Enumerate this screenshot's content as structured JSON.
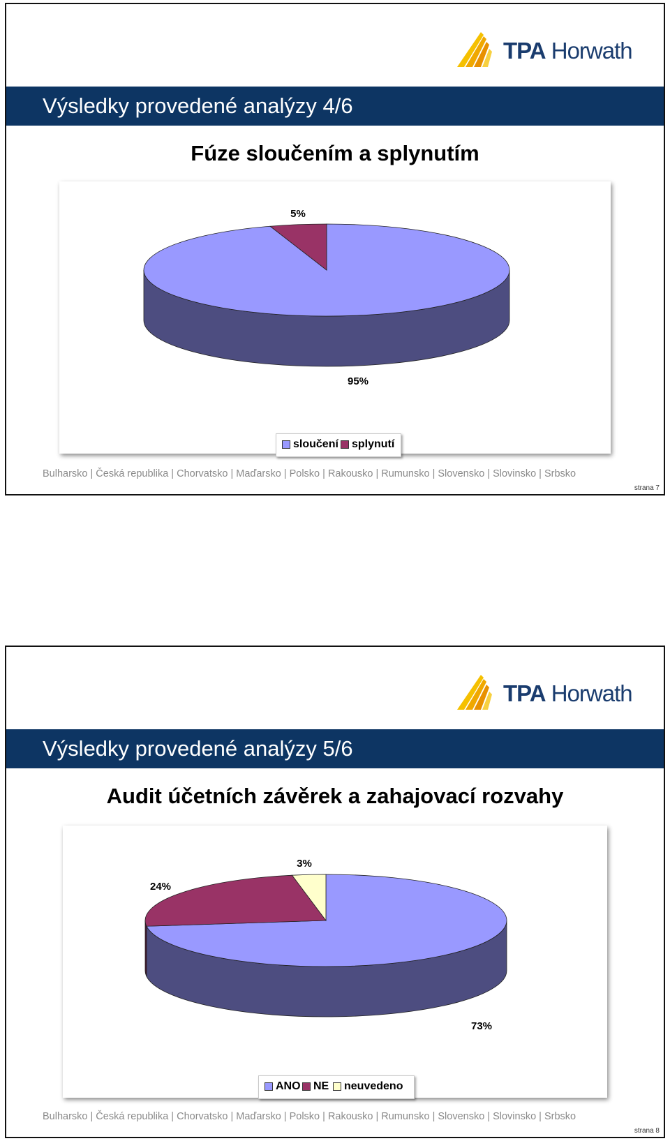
{
  "brand": {
    "logo_text_bold": "TPA",
    "logo_text_rest": " Horwath",
    "logo_color": "#1a3c6e",
    "logo_mark_color": "#f2b300"
  },
  "slides": [
    {
      "title": "Výsledky provedené analýzy 4/6",
      "subtitle": "Fúze sloučením a splynutím",
      "footer": "Bulharsko | Česká republika | Chorvatsko | Maďarsko | Polsko | Rakousko | Rumunsko | Slovensko | Slovinsko | Srbsko",
      "page": "strana 7"
    },
    {
      "title": "Výsledky provedené analýzy 5/6",
      "subtitle": "Audit účetních závěrek a zahajovací rozvahy",
      "footer": "Bulharsko | Česká republika | Chorvatsko | Maďarsko | Polsko | Rakousko | Rumunsko | Slovensko | Slovinsko | Srbsko",
      "page": "strana 8"
    }
  ],
  "chart_data": [
    {
      "type": "pie",
      "title": "Fúze sloučením a splynutím",
      "categories": [
        "sloučení",
        "splynutí"
      ],
      "values": [
        95,
        5
      ],
      "labels": [
        "95%",
        "5%"
      ],
      "colors": [
        "#9999ff",
        "#993366"
      ],
      "legend": "bottom",
      "three_d": true
    },
    {
      "type": "pie",
      "title": "Audit účetních závěrek a zahajovací rozvahy",
      "categories": [
        "ANO",
        "NE",
        "neuvedeno"
      ],
      "values": [
        73,
        24,
        3
      ],
      "labels": [
        "73%",
        "24%",
        "3%"
      ],
      "colors": [
        "#9999ff",
        "#993366",
        "#ffffcc"
      ],
      "legend": "bottom",
      "three_d": true
    }
  ]
}
